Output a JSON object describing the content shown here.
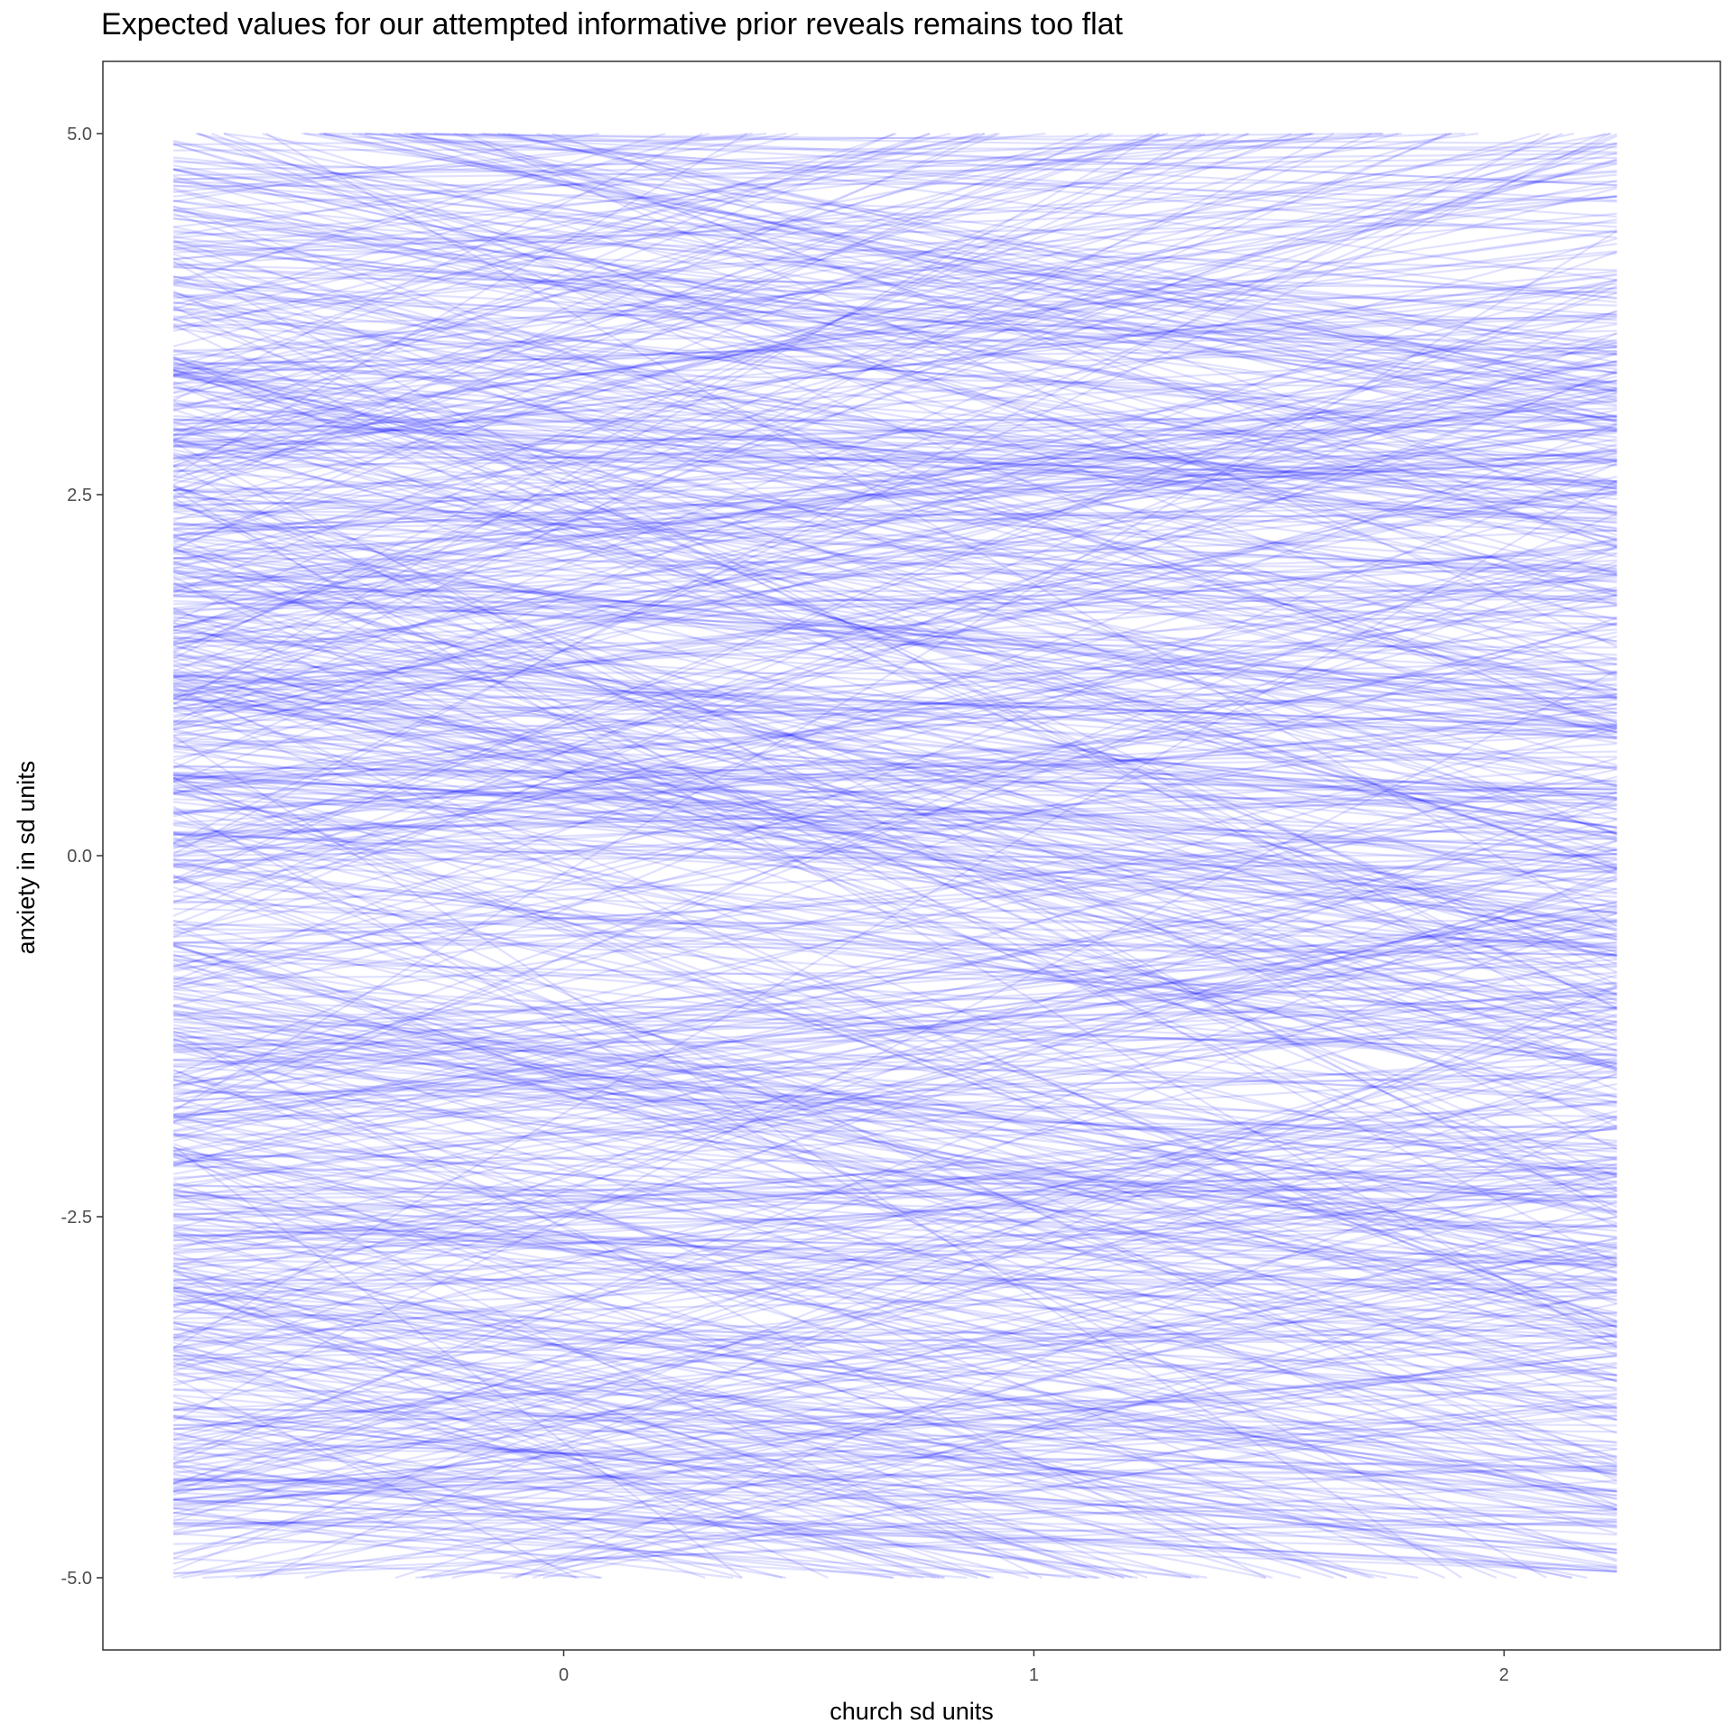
{
  "chart_data": {
    "type": "line",
    "title": "Expected values for our attempted informative prior reveals remains too flat",
    "xlabel": "church sd units",
    "ylabel": "anxiety in sd units",
    "xlim": [
      -0.98,
      2.46
    ],
    "ylim": [
      -5.5,
      5.5
    ],
    "x_range_of_lines": [
      -0.83,
      2.24
    ],
    "x_ticks": [
      0,
      1,
      2
    ],
    "x_tick_labels": [
      "0",
      "1",
      "2"
    ],
    "y_ticks": [
      5.0,
      2.5,
      0.0,
      -2.5,
      -5.0
    ],
    "y_tick_labels": [
      "5.0",
      "2.5",
      "0.0",
      "-2.5",
      "-5.0"
    ],
    "grid": false,
    "series_count": 1000,
    "series_spec": "each line: anxiety = intercept + slope * church, intercept ~ Uniform(-5, 5), slope ~ Normal(-0.1, 0.7), clipped to [-5, 5]",
    "line_color": "#0000ff",
    "line_opacity": 0.12
  }
}
